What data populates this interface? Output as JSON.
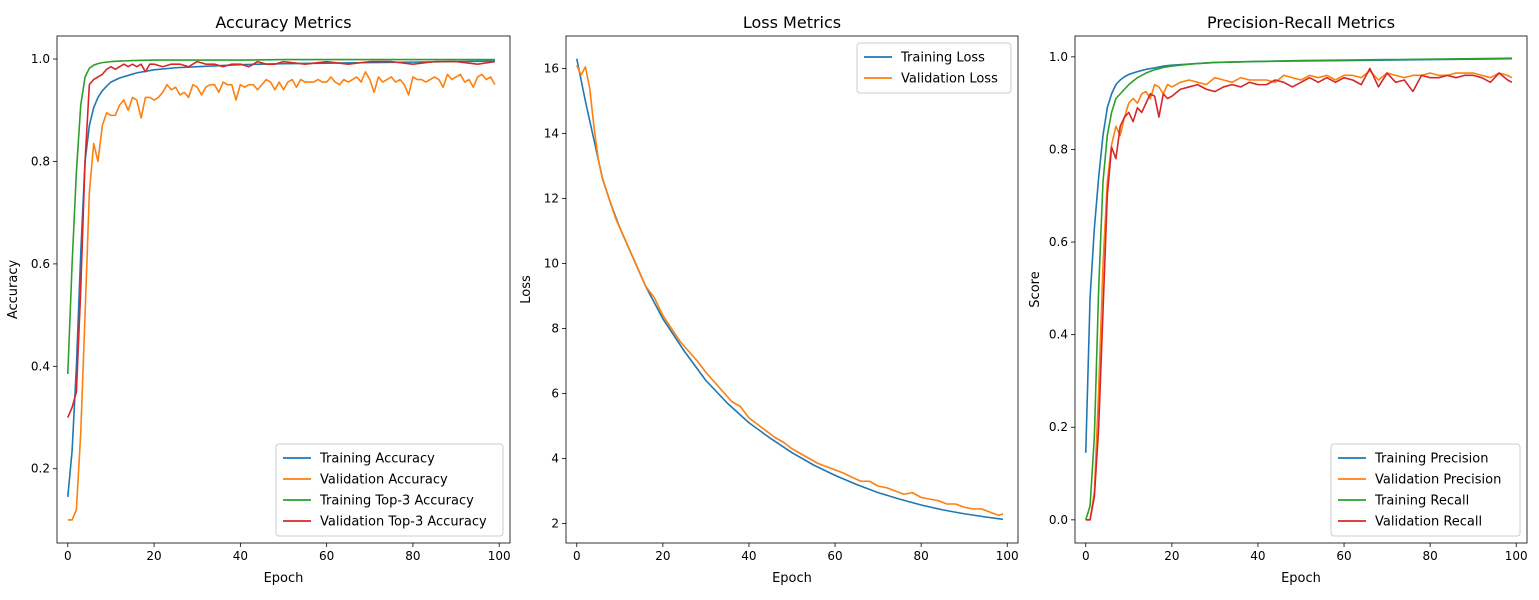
{
  "colors": {
    "blue": "#1f77b4",
    "orange": "#ff7f0e",
    "green": "#2ca02c",
    "red": "#d62728"
  },
  "chart_data": [
    {
      "type": "line",
      "title": "Accuracy Metrics",
      "xlabel": "Epoch",
      "ylabel": "Accuracy",
      "xlim": [
        -2.5,
        102.5
      ],
      "ylim": [
        0.055,
        1.045
      ],
      "xticks": [
        0,
        20,
        40,
        60,
        80,
        100
      ],
      "yticks": [
        0.2,
        0.4,
        0.6,
        0.8,
        1.0
      ],
      "ytick_labels": [
        "0.2",
        "0.4",
        "0.6",
        "0.8",
        "1.0"
      ],
      "grid": false,
      "legend_position": "lower-right",
      "series": [
        {
          "name": "Training Accuracy",
          "color": "#1f77b4",
          "x": [
            0,
            1,
            2,
            3,
            4,
            5,
            6,
            7,
            8,
            9,
            10,
            12,
            14,
            16,
            18,
            20,
            25,
            30,
            35,
            40,
            50,
            60,
            70,
            80,
            90,
            99
          ],
          "y": [
            0.145,
            0.235,
            0.4,
            0.62,
            0.8,
            0.87,
            0.905,
            0.925,
            0.938,
            0.947,
            0.955,
            0.963,
            0.968,
            0.973,
            0.976,
            0.979,
            0.983,
            0.985,
            0.987,
            0.989,
            0.991,
            0.992,
            0.993,
            0.994,
            0.995,
            0.996
          ]
        },
        {
          "name": "Validation Accuracy",
          "color": "#ff7f0e",
          "x": [
            0,
            1,
            2,
            3,
            4,
            5,
            6,
            7,
            8,
            9,
            10,
            11,
            12,
            13,
            14,
            15,
            16,
            17,
            18,
            19,
            20,
            21,
            22,
            23,
            24,
            25,
            26,
            27,
            28,
            29,
            30,
            31,
            32,
            33,
            34,
            35,
            36,
            37,
            38,
            39,
            40,
            41,
            42,
            43,
            44,
            45,
            46,
            47,
            48,
            49,
            50,
            51,
            52,
            53,
            54,
            55,
            56,
            57,
            58,
            59,
            60,
            61,
            62,
            63,
            64,
            65,
            66,
            67,
            68,
            69,
            70,
            71,
            72,
            73,
            74,
            75,
            76,
            77,
            78,
            79,
            80,
            81,
            82,
            83,
            84,
            85,
            86,
            87,
            88,
            89,
            90,
            91,
            92,
            93,
            94,
            95,
            96,
            97,
            98,
            99
          ],
          "y": [
            0.1,
            0.1,
            0.12,
            0.27,
            0.5,
            0.74,
            0.835,
            0.8,
            0.87,
            0.895,
            0.89,
            0.89,
            0.91,
            0.92,
            0.9,
            0.925,
            0.92,
            0.885,
            0.925,
            0.925,
            0.92,
            0.925,
            0.935,
            0.95,
            0.94,
            0.945,
            0.93,
            0.935,
            0.925,
            0.95,
            0.945,
            0.93,
            0.945,
            0.95,
            0.95,
            0.935,
            0.955,
            0.95,
            0.95,
            0.92,
            0.95,
            0.945,
            0.95,
            0.95,
            0.94,
            0.95,
            0.96,
            0.955,
            0.94,
            0.955,
            0.94,
            0.955,
            0.96,
            0.945,
            0.96,
            0.955,
            0.955,
            0.955,
            0.96,
            0.955,
            0.955,
            0.965,
            0.955,
            0.95,
            0.96,
            0.955,
            0.96,
            0.965,
            0.955,
            0.975,
            0.96,
            0.935,
            0.965,
            0.955,
            0.96,
            0.965,
            0.955,
            0.96,
            0.95,
            0.93,
            0.965,
            0.96,
            0.96,
            0.955,
            0.96,
            0.965,
            0.96,
            0.945,
            0.97,
            0.96,
            0.965,
            0.97,
            0.955,
            0.96,
            0.945,
            0.965,
            0.97,
            0.96,
            0.965,
            0.95
          ]
        },
        {
          "name": "Training Top-3 Accuracy",
          "color": "#2ca02c",
          "x": [
            0,
            1,
            2,
            3,
            4,
            5,
            6,
            7,
            8,
            10,
            12,
            15,
            20,
            30,
            40,
            50,
            60,
            70,
            80,
            90,
            99
          ],
          "y": [
            0.385,
            0.6,
            0.78,
            0.91,
            0.965,
            0.982,
            0.988,
            0.991,
            0.993,
            0.995,
            0.996,
            0.997,
            0.998,
            0.998,
            0.998,
            0.999,
            0.999,
            0.999,
            0.999,
            0.999,
            0.999
          ]
        },
        {
          "name": "Validation Top-3 Accuracy",
          "color": "#d62728",
          "x": [
            0,
            1,
            2,
            3,
            4,
            5,
            6,
            7,
            8,
            9,
            10,
            11,
            12,
            13,
            14,
            15,
            16,
            17,
            18,
            19,
            20,
            22,
            24,
            26,
            28,
            30,
            32,
            34,
            36,
            38,
            40,
            42,
            44,
            46,
            48,
            50,
            55,
            60,
            65,
            70,
            75,
            80,
            85,
            90,
            95,
            99
          ],
          "y": [
            0.3,
            0.32,
            0.35,
            0.55,
            0.8,
            0.95,
            0.96,
            0.965,
            0.97,
            0.98,
            0.985,
            0.98,
            0.985,
            0.99,
            0.985,
            0.99,
            0.985,
            0.99,
            0.975,
            0.99,
            0.99,
            0.985,
            0.99,
            0.99,
            0.985,
            0.995,
            0.99,
            0.99,
            0.985,
            0.99,
            0.99,
            0.985,
            0.995,
            0.99,
            0.99,
            0.995,
            0.99,
            0.995,
            0.99,
            0.995,
            0.995,
            0.99,
            0.995,
            0.995,
            0.99,
            0.995
          ]
        }
      ]
    },
    {
      "type": "line",
      "title": "Loss Metrics",
      "xlabel": "Epoch",
      "ylabel": "Loss",
      "xlim": [
        -2.5,
        102.5
      ],
      "ylim": [
        1.4,
        17.0
      ],
      "xticks": [
        0,
        20,
        40,
        60,
        80,
        100
      ],
      "yticks": [
        2,
        4,
        6,
        8,
        10,
        12,
        14,
        16
      ],
      "ytick_labels": [
        "2",
        "4",
        "6",
        "8",
        "10",
        "12",
        "14",
        "16"
      ],
      "grid": false,
      "legend_position": "upper-right",
      "series": [
        {
          "name": "Training Loss",
          "color": "#1f77b4",
          "x": [
            0,
            2,
            4,
            6,
            8,
            10,
            12,
            14,
            16,
            18,
            20,
            25,
            30,
            35,
            40,
            45,
            50,
            55,
            60,
            65,
            70,
            75,
            80,
            85,
            90,
            95,
            99
          ],
          "y": [
            16.3,
            15.0,
            13.8,
            12.6,
            11.8,
            11.1,
            10.5,
            9.9,
            9.3,
            8.8,
            8.3,
            7.3,
            6.4,
            5.7,
            5.1,
            4.62,
            4.18,
            3.8,
            3.48,
            3.2,
            2.95,
            2.75,
            2.57,
            2.42,
            2.3,
            2.2,
            2.13
          ]
        },
        {
          "name": "Validation Loss",
          "color": "#ff7f0e",
          "x": [
            0,
            1,
            2,
            3,
            4,
            5,
            6,
            7,
            8,
            9,
            10,
            12,
            14,
            16,
            18,
            20,
            22,
            24,
            26,
            28,
            30,
            32,
            34,
            36,
            38,
            40,
            42,
            44,
            46,
            48,
            50,
            52,
            54,
            56,
            58,
            60,
            62,
            64,
            66,
            68,
            70,
            72,
            74,
            76,
            78,
            80,
            82,
            84,
            86,
            88,
            90,
            92,
            94,
            96,
            98,
            99
          ],
          "y": [
            16.1,
            15.8,
            16.05,
            15.4,
            14.2,
            13.2,
            12.6,
            12.2,
            11.8,
            11.4,
            11.1,
            10.5,
            9.9,
            9.3,
            8.95,
            8.4,
            8.0,
            7.6,
            7.3,
            7.0,
            6.65,
            6.35,
            6.05,
            5.75,
            5.6,
            5.25,
            5.05,
            4.85,
            4.65,
            4.5,
            4.3,
            4.15,
            4.0,
            3.85,
            3.75,
            3.65,
            3.55,
            3.42,
            3.3,
            3.3,
            3.15,
            3.1,
            3.0,
            2.9,
            2.95,
            2.8,
            2.75,
            2.7,
            2.6,
            2.6,
            2.5,
            2.45,
            2.45,
            2.35,
            2.25,
            2.3
          ]
        }
      ]
    },
    {
      "type": "line",
      "title": "Precision-Recall Metrics",
      "xlabel": "Epoch",
      "ylabel": "Score",
      "xlim": [
        -2.5,
        102.5
      ],
      "ylim": [
        -0.05,
        1.045
      ],
      "xticks": [
        0,
        20,
        40,
        60,
        80,
        100
      ],
      "yticks": [
        0.0,
        0.2,
        0.4,
        0.6,
        0.8,
        1.0
      ],
      "ytick_labels": [
        "0.0",
        "0.2",
        "0.4",
        "0.6",
        "0.8",
        "1.0"
      ],
      "grid": false,
      "legend_position": "lower-right",
      "series": [
        {
          "name": "Training Precision",
          "color": "#1f77b4",
          "x": [
            0,
            1,
            2,
            3,
            4,
            5,
            6,
            7,
            8,
            9,
            10,
            12,
            14,
            16,
            18,
            20,
            25,
            30,
            40,
            50,
            60,
            70,
            80,
            90,
            99
          ],
          "y": [
            0.145,
            0.48,
            0.63,
            0.74,
            0.83,
            0.89,
            0.92,
            0.94,
            0.95,
            0.957,
            0.962,
            0.968,
            0.973,
            0.976,
            0.98,
            0.982,
            0.985,
            0.988,
            0.99,
            0.991,
            0.992,
            0.993,
            0.994,
            0.995,
            0.996
          ]
        },
        {
          "name": "Validation Precision",
          "color": "#ff7f0e",
          "x": [
            0,
            1,
            2,
            3,
            4,
            5,
            6,
            7,
            8,
            9,
            10,
            11,
            12,
            13,
            14,
            15,
            16,
            17,
            18,
            19,
            20,
            22,
            24,
            26,
            28,
            30,
            32,
            34,
            36,
            38,
            40,
            42,
            44,
            46,
            48,
            50,
            52,
            54,
            56,
            58,
            60,
            62,
            64,
            66,
            68,
            70,
            72,
            74,
            76,
            78,
            80,
            82,
            84,
            86,
            88,
            90,
            92,
            94,
            96,
            98,
            99
          ],
          "y": [
            0.0,
            0.0,
            0.06,
            0.28,
            0.55,
            0.73,
            0.81,
            0.85,
            0.83,
            0.87,
            0.9,
            0.91,
            0.9,
            0.92,
            0.925,
            0.91,
            0.94,
            0.935,
            0.92,
            0.94,
            0.935,
            0.945,
            0.95,
            0.945,
            0.94,
            0.955,
            0.95,
            0.945,
            0.955,
            0.95,
            0.95,
            0.95,
            0.945,
            0.96,
            0.955,
            0.95,
            0.96,
            0.955,
            0.96,
            0.95,
            0.96,
            0.96,
            0.955,
            0.97,
            0.95,
            0.965,
            0.96,
            0.955,
            0.96,
            0.96,
            0.965,
            0.96,
            0.96,
            0.965,
            0.965,
            0.965,
            0.96,
            0.955,
            0.965,
            0.96,
            0.955
          ]
        },
        {
          "name": "Training Recall",
          "color": "#2ca02c",
          "x": [
            0,
            1,
            2,
            3,
            4,
            5,
            6,
            7,
            8,
            9,
            10,
            12,
            14,
            16,
            18,
            20,
            25,
            30,
            40,
            50,
            60,
            70,
            80,
            90,
            99
          ],
          "y": [
            0.0,
            0.03,
            0.18,
            0.5,
            0.73,
            0.83,
            0.88,
            0.91,
            0.92,
            0.93,
            0.94,
            0.955,
            0.965,
            0.972,
            0.977,
            0.98,
            0.985,
            0.988,
            0.99,
            0.992,
            0.993,
            0.994,
            0.995,
            0.996,
            0.997
          ]
        },
        {
          "name": "Validation Recall",
          "color": "#d62728",
          "x": [
            0,
            1,
            2,
            3,
            4,
            5,
            6,
            7,
            8,
            9,
            10,
            11,
            12,
            13,
            14,
            15,
            16,
            17,
            18,
            19,
            20,
            22,
            24,
            26,
            28,
            30,
            32,
            34,
            36,
            38,
            40,
            42,
            44,
            46,
            48,
            50,
            52,
            54,
            56,
            58,
            60,
            62,
            64,
            66,
            68,
            70,
            72,
            74,
            76,
            78,
            80,
            82,
            84,
            86,
            88,
            90,
            92,
            94,
            96,
            98,
            99
          ],
          "y": [
            0.0,
            0.0,
            0.05,
            0.2,
            0.45,
            0.7,
            0.805,
            0.78,
            0.85,
            0.87,
            0.88,
            0.86,
            0.89,
            0.88,
            0.9,
            0.92,
            0.915,
            0.87,
            0.92,
            0.91,
            0.915,
            0.93,
            0.935,
            0.94,
            0.93,
            0.925,
            0.935,
            0.94,
            0.935,
            0.945,
            0.94,
            0.94,
            0.95,
            0.945,
            0.935,
            0.945,
            0.955,
            0.945,
            0.955,
            0.945,
            0.955,
            0.95,
            0.94,
            0.975,
            0.935,
            0.965,
            0.945,
            0.95,
            0.925,
            0.96,
            0.955,
            0.955,
            0.96,
            0.955,
            0.96,
            0.96,
            0.955,
            0.945,
            0.965,
            0.95,
            0.945
          ]
        }
      ]
    }
  ]
}
